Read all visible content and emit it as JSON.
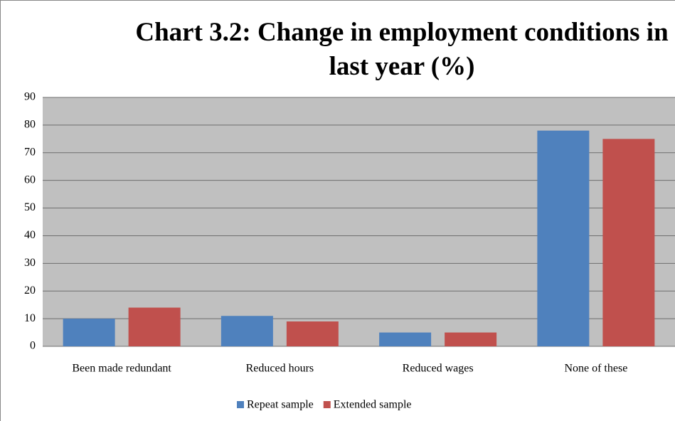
{
  "chart_data": {
    "type": "bar",
    "title": "Chart 3.2: Change in employment conditions in last year (%)",
    "categories": [
      "Been made redundant",
      "Reduced hours",
      "Reduced wages",
      "None of these"
    ],
    "series": [
      {
        "name": "Repeat sample",
        "color": "#4f81bd",
        "values": [
          10,
          11,
          5,
          78
        ]
      },
      {
        "name": "Extended sample",
        "color": "#c0504d",
        "values": [
          14,
          9,
          5,
          75
        ]
      }
    ],
    "ylim": [
      0,
      90
    ],
    "yticks": [
      0,
      10,
      20,
      30,
      40,
      50,
      60,
      70,
      80,
      90
    ],
    "grid": true,
    "legend": "bottom"
  }
}
